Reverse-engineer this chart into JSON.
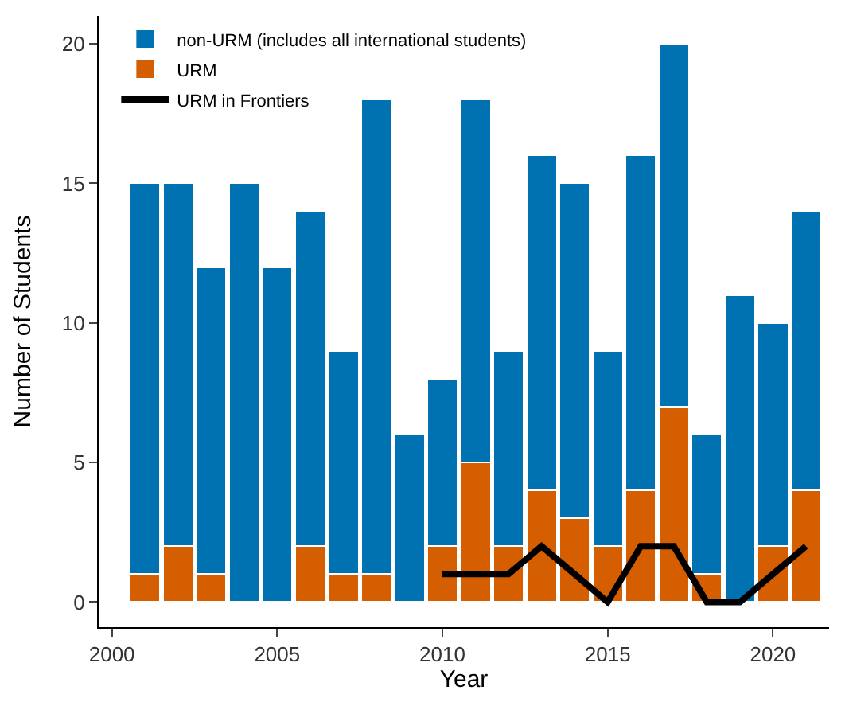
{
  "chart_data": {
    "type": "bar",
    "stacked": true,
    "xlabel": "Year",
    "ylabel": "Number of Students",
    "x": [
      2001,
      2002,
      2003,
      2004,
      2005,
      2006,
      2007,
      2008,
      2009,
      2010,
      2011,
      2012,
      2013,
      2014,
      2015,
      2016,
      2017,
      2018,
      2019,
      2020,
      2021
    ],
    "series": [
      {
        "name": "URM",
        "color": "#d55e00",
        "values": [
          1,
          2,
          1,
          0,
          0,
          2,
          1,
          1,
          0,
          2,
          5,
          2,
          4,
          3,
          2,
          4,
          7,
          1,
          0,
          2,
          4
        ]
      },
      {
        "name": "non-URM (includes all international students)",
        "color": "#0072b2",
        "values": [
          14,
          13,
          11,
          15,
          12,
          12,
          8,
          17,
          6,
          6,
          13,
          7,
          12,
          12,
          7,
          12,
          13,
          5,
          11,
          8,
          10
        ]
      },
      {
        "name": "URM in Frontiers",
        "type": "line",
        "color": "#000000",
        "x": [
          2010,
          2011,
          2012,
          2013,
          2014,
          2015,
          2016,
          2017,
          2018,
          2019,
          2020,
          2021
        ],
        "values": [
          1,
          1,
          1,
          2,
          1,
          0,
          2,
          2,
          0,
          0,
          1,
          2
        ]
      }
    ],
    "xlim": [
      1999.6,
      2021.7
    ],
    "xticks": [
      2000,
      2005,
      2010,
      2015,
      2020
    ],
    "ylim": [
      -0.9,
      21.0
    ],
    "yticks": [
      0,
      5,
      10,
      15,
      20
    ],
    "legend": "top left",
    "marker": "none",
    "line_style": "solid"
  }
}
